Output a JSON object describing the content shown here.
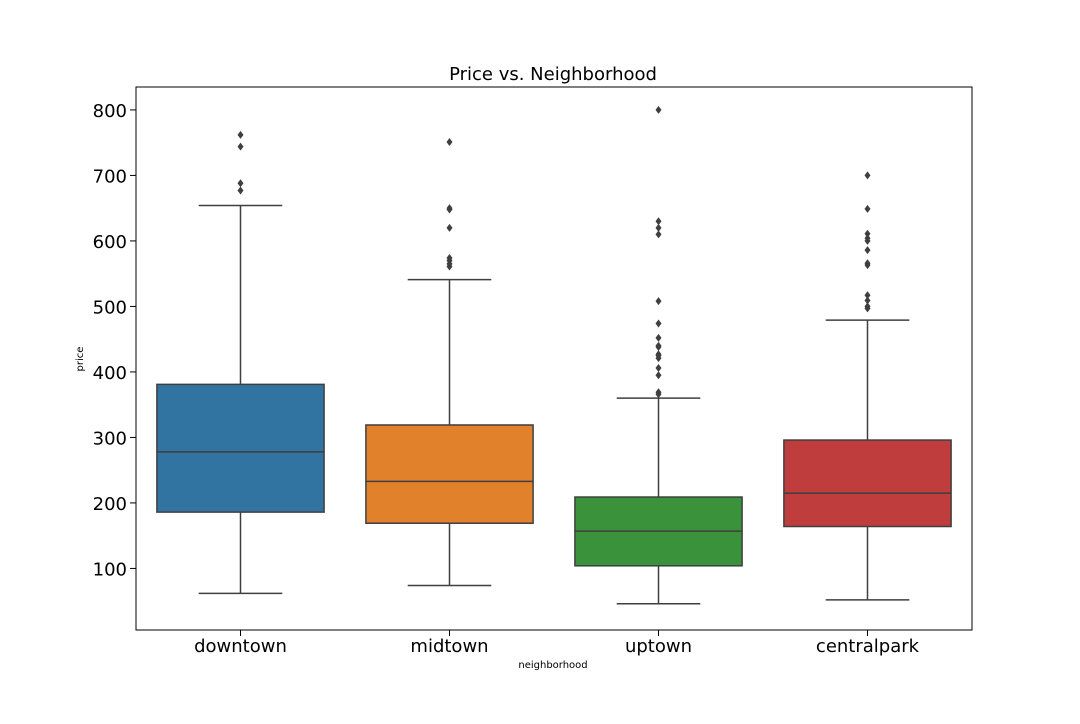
{
  "chart_data": {
    "type": "box",
    "title": "Price vs. Neighborhood",
    "xlabel": "neighborhood",
    "ylabel": "price",
    "ylim": [
      6,
      835
    ],
    "yticks": [
      100,
      200,
      300,
      400,
      500,
      600,
      700,
      800
    ],
    "grid": false,
    "categories": [
      "downtown",
      "midtown",
      "uptown",
      "centralpark"
    ],
    "colors": [
      "#3274a1",
      "#e1812c",
      "#3a923a",
      "#c03d3e"
    ],
    "line_color": "#3f3f3f",
    "series": [
      {
        "category": "downtown",
        "whisker_low": 62,
        "q1": 186,
        "median": 278,
        "q3": 381,
        "whisker_high": 654,
        "outliers": [
          677,
          688,
          744,
          762
        ]
      },
      {
        "category": "midtown",
        "whisker_low": 74,
        "q1": 169,
        "median": 233,
        "q3": 319,
        "whisker_high": 541,
        "outliers": [
          561,
          565,
          570,
          574,
          620,
          648,
          650,
          751
        ]
      },
      {
        "category": "uptown",
        "whisker_low": 46,
        "q1": 104,
        "median": 157,
        "q3": 209,
        "whisker_high": 360,
        "outliers": [
          366,
          369,
          395,
          406,
          421,
          425,
          427,
          438,
          440,
          452,
          474,
          508,
          610,
          620,
          630,
          800
        ]
      },
      {
        "category": "centralpark",
        "whisker_low": 52,
        "q1": 164,
        "median": 215,
        "q3": 296,
        "whisker_high": 479,
        "outliers": [
          497,
          500,
          509,
          517,
          563,
          566,
          586,
          600,
          604,
          611,
          649,
          700
        ]
      }
    ]
  }
}
